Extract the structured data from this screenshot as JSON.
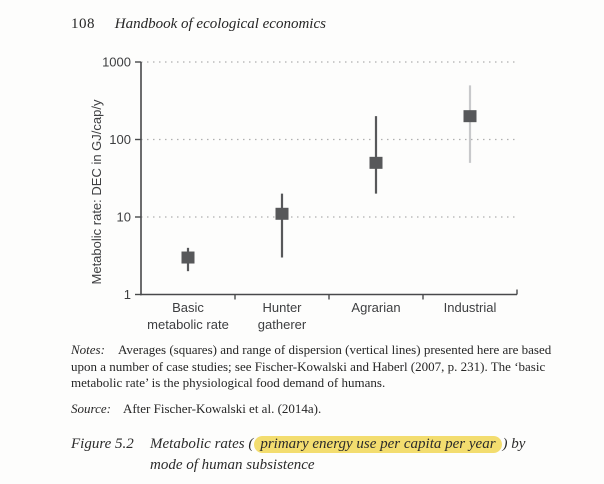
{
  "header": {
    "page_number": "108",
    "book_title": "Handbook of ecological economics"
  },
  "chart_data": {
    "type": "scatter",
    "title": "",
    "xlabel": "",
    "ylabel": "Metabolic rate: DEC in GJ/cap/y",
    "yscale": "log",
    "ylim": [
      1,
      1000
    ],
    "yticks": [
      1,
      10,
      100,
      1000
    ],
    "grid": "horizontal dotted lines at 10, 100, 1000",
    "legend": "none (explained in notes: squares = averages, vertical lines = range of dispersion)",
    "categories": [
      [
        "Basic",
        "metabolic rate"
      ],
      [
        "Hunter",
        "gatherer"
      ],
      [
        "Agrarian"
      ],
      [
        "Industrial"
      ]
    ],
    "points": [
      {
        "category": "Basic metabolic rate",
        "mean": 3,
        "low": 2,
        "high": 4,
        "bar_color": "#57585a"
      },
      {
        "category": "Hunter gatherer",
        "mean": 11,
        "low": 3,
        "high": 20,
        "bar_color": "#57585a"
      },
      {
        "category": "Agrarian",
        "mean": 50,
        "low": 20,
        "high": 200,
        "bar_color": "#57585a"
      },
      {
        "category": "Industrial",
        "mean": 200,
        "low": 50,
        "high": 500,
        "bar_color": "#c8c9cb"
      }
    ],
    "marker": "square",
    "colors": {
      "marker": "#57585a",
      "grid": "#b0b0b0",
      "axis": "#48494b",
      "text": "#3d3e40"
    }
  },
  "notes": {
    "label": "Notes:",
    "lines": [
      "Averages (squares) and range of dispersion (vertical lines) presented here are based",
      "upon a number of case studies; see Fischer-Kowalski and Haberl (2007, p. 231). The ‘basic",
      "metabolic rate’ is the physiological food demand of humans."
    ]
  },
  "source": {
    "label": "Source:",
    "text": "After Fischer-Kowalski et al. (2014a)."
  },
  "caption": {
    "label": "Figure 5.2",
    "pre": "Metabolic rates (",
    "highlight": "primary energy use per capita per year",
    "post": ") by",
    "line2": "mode of human subsistence",
    "highlight_color": "#f3dd6f"
  }
}
